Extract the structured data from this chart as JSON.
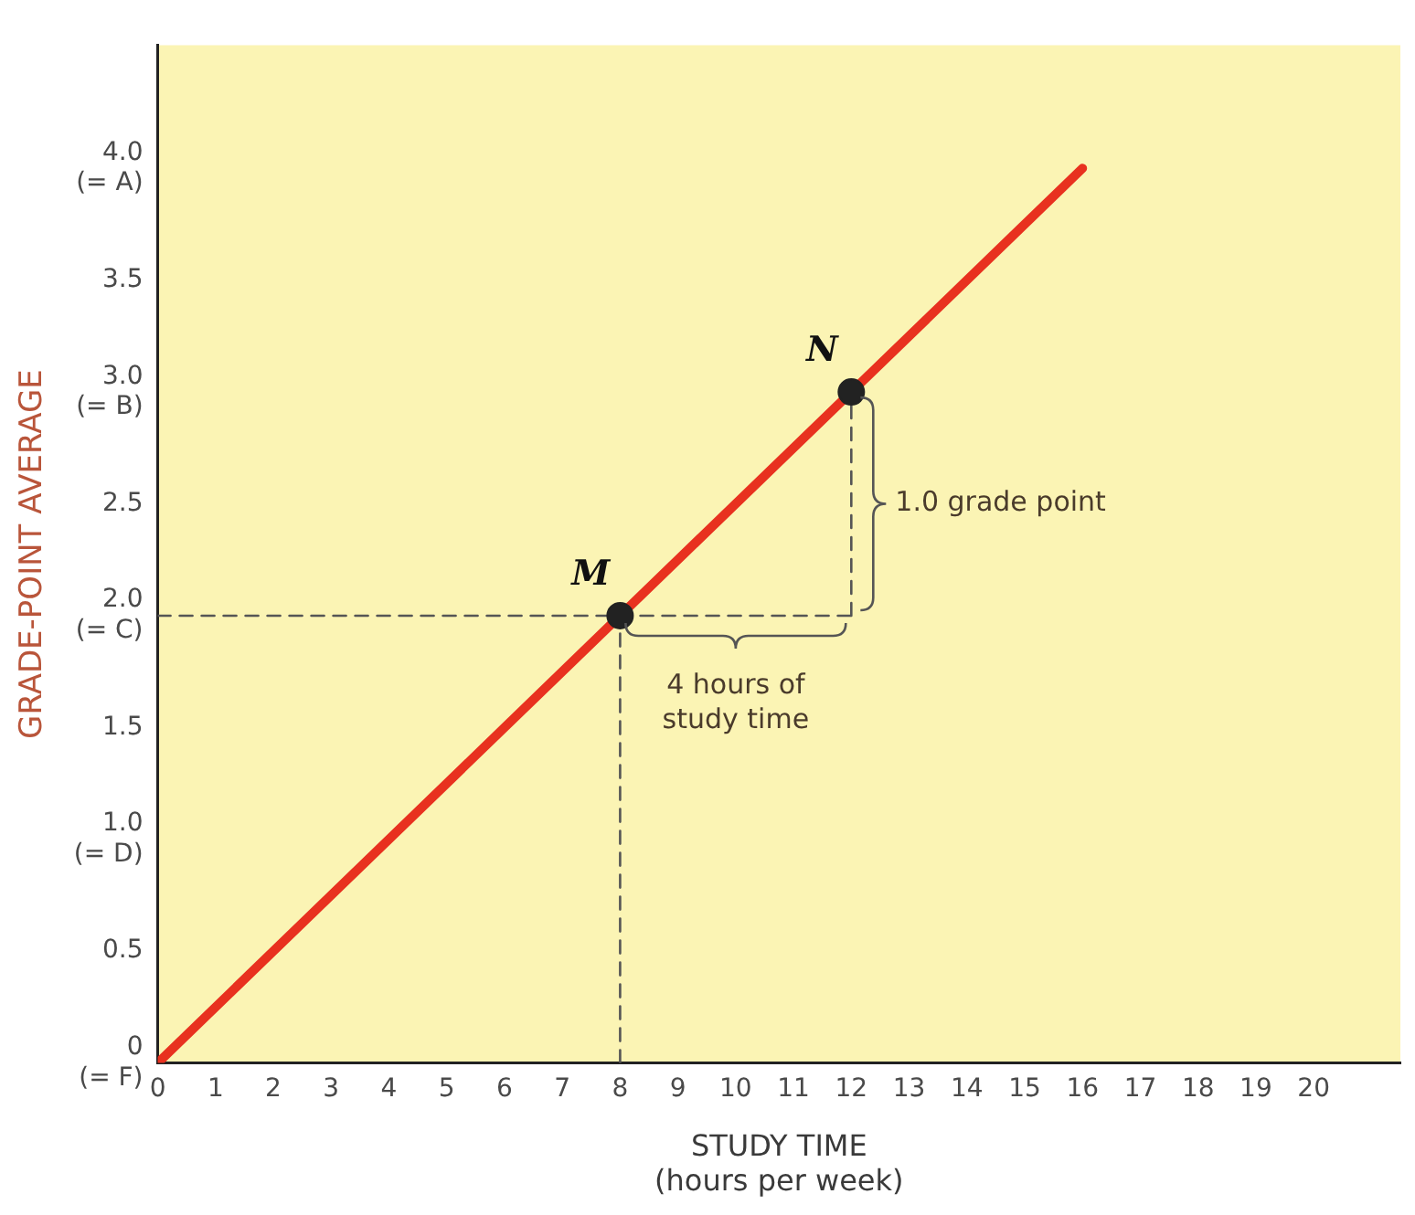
{
  "chart_data": {
    "type": "line",
    "xlabel": "STUDY TIME\n(hours per week)",
    "ylabel": "GRADE-POINT AVERAGE",
    "xlim": [
      0,
      21.5
    ],
    "ylim": [
      0,
      4.55
    ],
    "xticks": [
      0,
      1,
      2,
      3,
      4,
      5,
      6,
      7,
      8,
      9,
      10,
      11,
      12,
      13,
      14,
      15,
      16,
      17,
      18,
      19,
      20
    ],
    "yticks": [
      {
        "value": 0,
        "label": "0\n(= F)"
      },
      0.5,
      {
        "value": 1,
        "label": "1.0\n(= D)"
      },
      1.5,
      {
        "value": 2,
        "label": "2.0\n(= C)"
      },
      2.5,
      {
        "value": 3,
        "label": "3.0\n(= B)"
      },
      3.5,
      {
        "value": 4,
        "label": "4.0\n(= A)"
      }
    ],
    "grid": false,
    "legend": false,
    "series": [
      {
        "x": [
          0,
          16
        ],
        "values": [
          0,
          4
        ],
        "color": "#e8311f",
        "line_style": "solid",
        "marker": "none"
      },
      {
        "type": "line",
        "x": [
          0,
          12
        ],
        "values": [
          2,
          2
        ],
        "color": "#555555",
        "line_style": "dashed",
        "marker": "none"
      },
      {
        "type": "line",
        "x": [
          8,
          8
        ],
        "values": [
          0,
          2
        ],
        "color": "#555555",
        "line_style": "dashed",
        "marker": "none"
      },
      {
        "type": "line",
        "x": [
          12,
          12
        ],
        "values": [
          2,
          3
        ],
        "color": "#555555",
        "line_style": "dashed",
        "marker": "none"
      },
      {
        "type": "scatter",
        "x": [
          8,
          12
        ],
        "values": [
          2,
          3
        ],
        "color": "#222222",
        "marker": "circle"
      }
    ],
    "annotations": [
      {
        "text": "M",
        "x": 8,
        "y": 2
      },
      {
        "text": "N",
        "x": 12,
        "y": 3
      },
      "1.0 grade point",
      "4 hours of\nstudy time"
    ]
  }
}
